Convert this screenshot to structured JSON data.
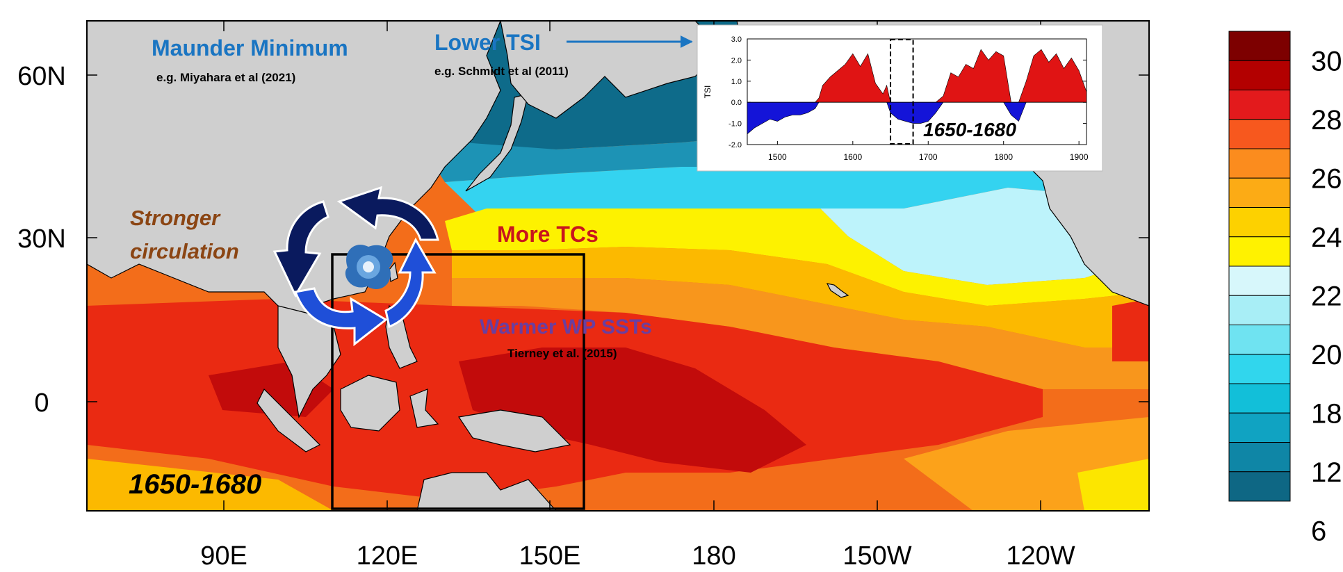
{
  "map": {
    "lat_labels": [
      "60N",
      "30N",
      "0"
    ],
    "lon_labels": [
      "90E",
      "120E",
      "150E",
      "180",
      "150W",
      "120W"
    ],
    "period_label": "1650-1680"
  },
  "annotations": {
    "maunder_title": "Maunder Minimum",
    "maunder_ref": "e.g. Miyahara et al (2021)",
    "tsi_title": "Lower TSI",
    "tsi_ref": "e.g. Schmidt et al (2011)",
    "circulation_line1": "Stronger",
    "circulation_line2": "circulation",
    "tcs": "More TCs",
    "sst_title": "Warmer WP SSTs",
    "sst_ref": "Tierney et al. (2015)"
  },
  "inset": {
    "ylabel": "TSI",
    "period_label": "1650-1680",
    "y_ticks": [
      "3.0",
      "2.0",
      "1.0",
      "0.0",
      "-1.0",
      "-2.0"
    ],
    "x_ticks": [
      "1500",
      "1600",
      "1700",
      "1800",
      "1900"
    ]
  },
  "colorbar": {
    "tick_labels": [
      "30",
      "28",
      "26",
      "24",
      "22",
      "20",
      "18",
      "12",
      "6"
    ]
  },
  "colors": {
    "land": "#cfcfcf",
    "sst_warm": "#c20b0b",
    "sst_cold": "#0d5f7f",
    "annotation_blue": "#1a75c2",
    "annotation_brown": "#8b4513",
    "annotation_red": "#c8161d",
    "annotation_purple": "#6a3fa0",
    "arrow_dark": "#0a1a5e",
    "arrow_bright": "#1f4fd8"
  },
  "chart_data": {
    "type": "area",
    "title": "",
    "xlabel": "",
    "ylabel": "TSI",
    "xlim": [
      1460,
      1910
    ],
    "ylim": [
      -2.0,
      3.0
    ],
    "highlight_period": [
      1650,
      1680
    ],
    "series": [
      {
        "x": [
          1460,
          1470,
          1480,
          1490,
          1500,
          1510,
          1520,
          1530,
          1540,
          1550,
          1555,
          1560,
          1570,
          1580,
          1590,
          1600,
          1610,
          1620,
          1630,
          1640,
          1645,
          1650,
          1660,
          1670,
          1680,
          1690,
          1700,
          1710,
          1720,
          1730,
          1740,
          1750,
          1760,
          1770,
          1780,
          1790,
          1800,
          1810,
          1820,
          1830,
          1840,
          1850,
          1860,
          1870,
          1880,
          1890,
          1900,
          1910
        ],
        "values": [
          -1.5,
          -1.2,
          -1.0,
          -0.8,
          -0.9,
          -0.7,
          -0.6,
          -0.6,
          -0.5,
          -0.3,
          0.2,
          0.8,
          1.2,
          1.5,
          1.8,
          2.3,
          1.7,
          2.3,
          0.9,
          0.4,
          0.8,
          -0.5,
          -0.8,
          -0.9,
          -1.0,
          -1.0,
          -0.9,
          -0.5,
          0.3,
          1.4,
          1.2,
          1.8,
          1.6,
          2.5,
          2.0,
          2.4,
          2.2,
          -0.6,
          -0.9,
          1.0,
          2.2,
          2.5,
          1.9,
          2.3,
          1.6,
          2.1,
          1.5,
          0.5
        ]
      }
    ]
  }
}
